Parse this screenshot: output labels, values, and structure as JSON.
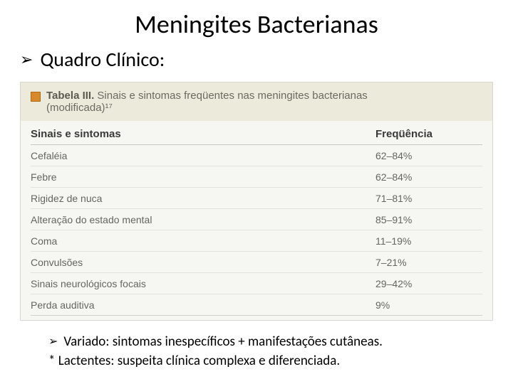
{
  "title": "Meningites Bacterianas",
  "bullet1": "Quadro Clínico:",
  "table": {
    "label": "Tabela III.",
    "caption_line1": "Sinais e sintomas freqüentes nas meningites bacterianas",
    "caption_line2": "(modificada)¹⁷",
    "header_col1": "Sinais e sintomas",
    "header_col2": "Freqüência",
    "rows": [
      {
        "c1": "Cefaléia",
        "c2": "62–84%"
      },
      {
        "c1": "Febre",
        "c2": "62–84%"
      },
      {
        "c1": "Rigidez de nuca",
        "c2": "71–81%"
      },
      {
        "c1": "Alteração do estado mental",
        "c2": "85–91%"
      },
      {
        "c1": "Coma",
        "c2": "11–19%"
      },
      {
        "c1": "Convulsões",
        "c2": "7–21%"
      },
      {
        "c1": "Sinais neurológicos focais",
        "c2": "29–42%"
      },
      {
        "c1": "Perda auditiva",
        "c2": "9%"
      }
    ],
    "colors": {
      "wrap_bg": "#f6f7f2",
      "header_bg": "#eceadb",
      "marker": "#d88a2a",
      "text_muted": "#666660"
    }
  },
  "footer_bullet": "Variado: sintomas inespecíficos + manifestações cutâneas.",
  "footer_note": "* Lactentes: suspeita clínica complexa e diferenciada."
}
